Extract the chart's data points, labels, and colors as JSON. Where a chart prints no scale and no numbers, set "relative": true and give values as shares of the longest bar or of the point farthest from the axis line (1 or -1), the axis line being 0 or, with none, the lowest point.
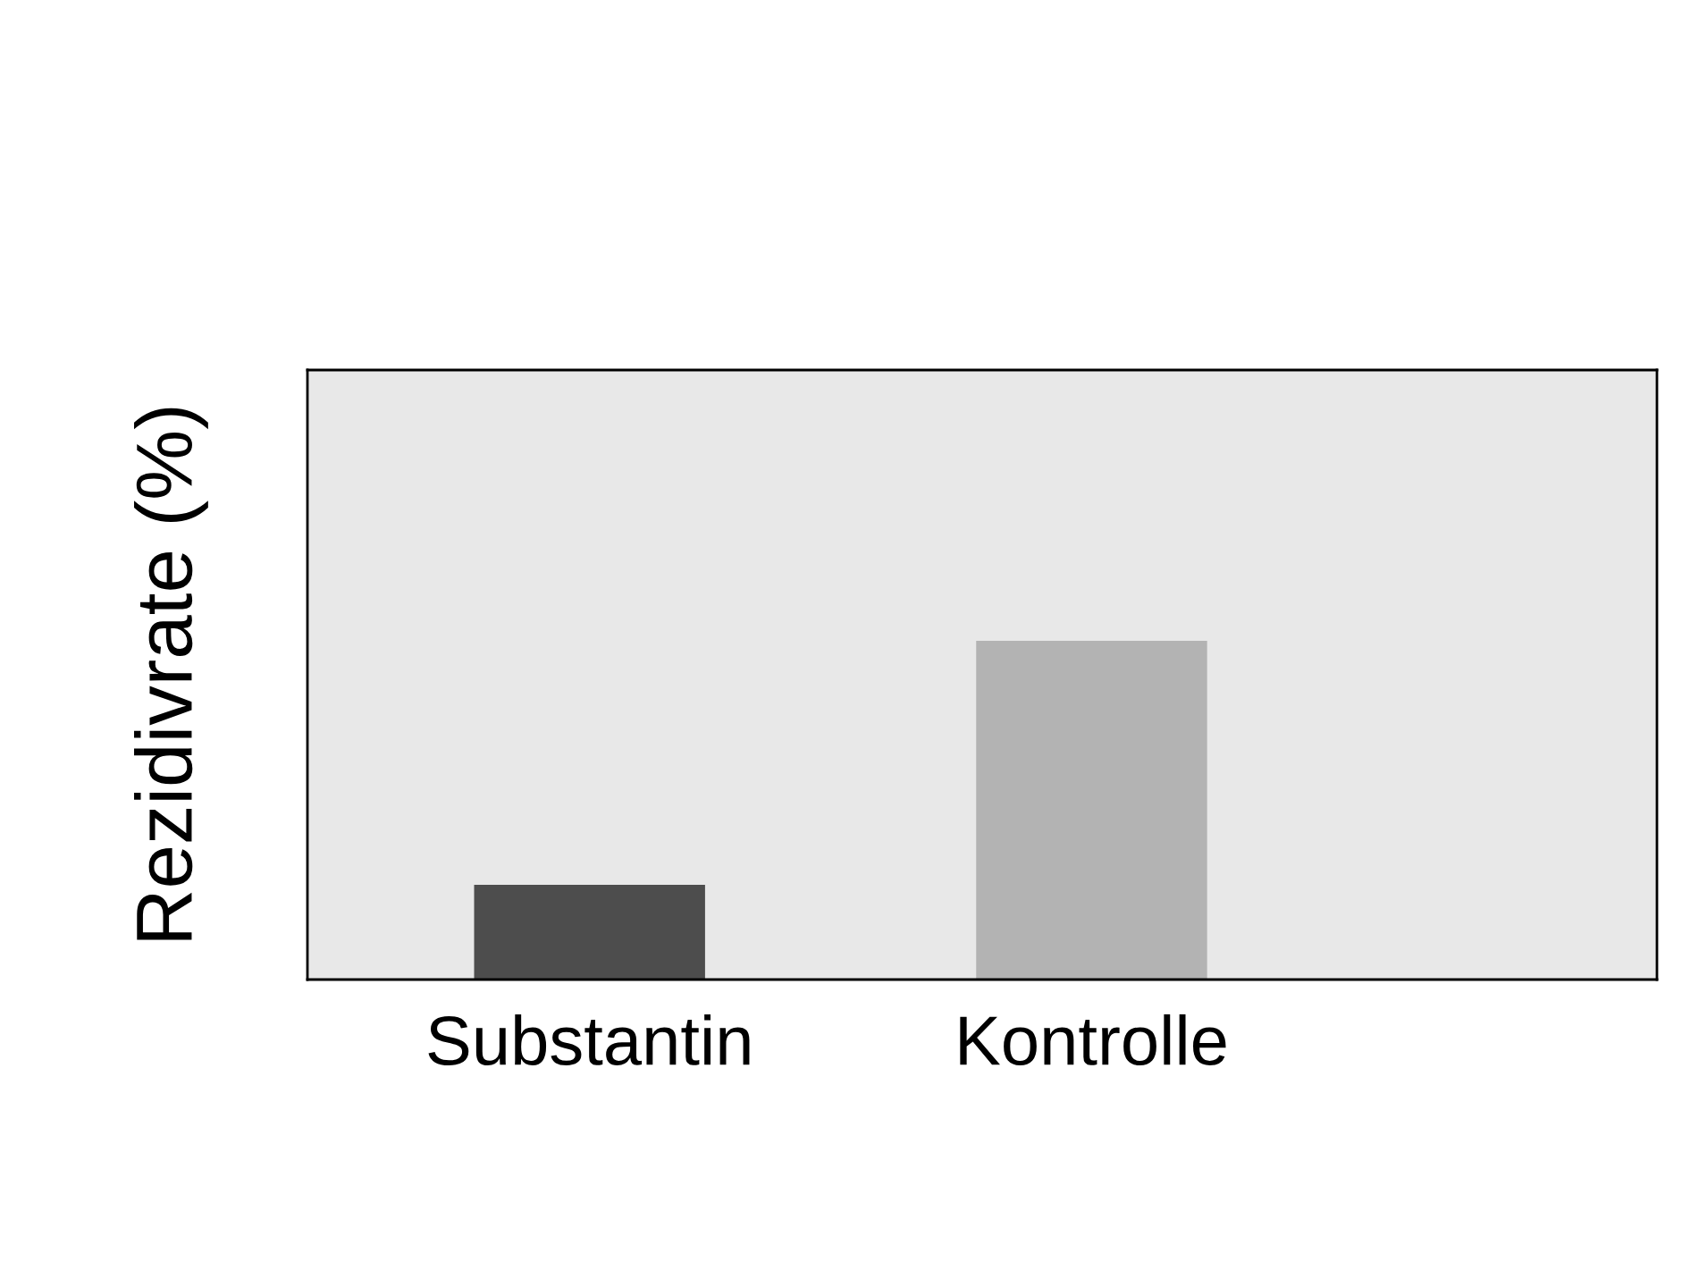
{
  "chart_data": {
    "type": "bar",
    "ylabel": "Rezidivrate (%)",
    "categories": [
      "Substantin",
      "Kontrolle"
    ],
    "relative": true,
    "values": [
      0.28,
      1
    ],
    "colors": [
      "#4d4d4d",
      "#b3b3b3"
    ],
    "grid": false,
    "legend": false
  }
}
